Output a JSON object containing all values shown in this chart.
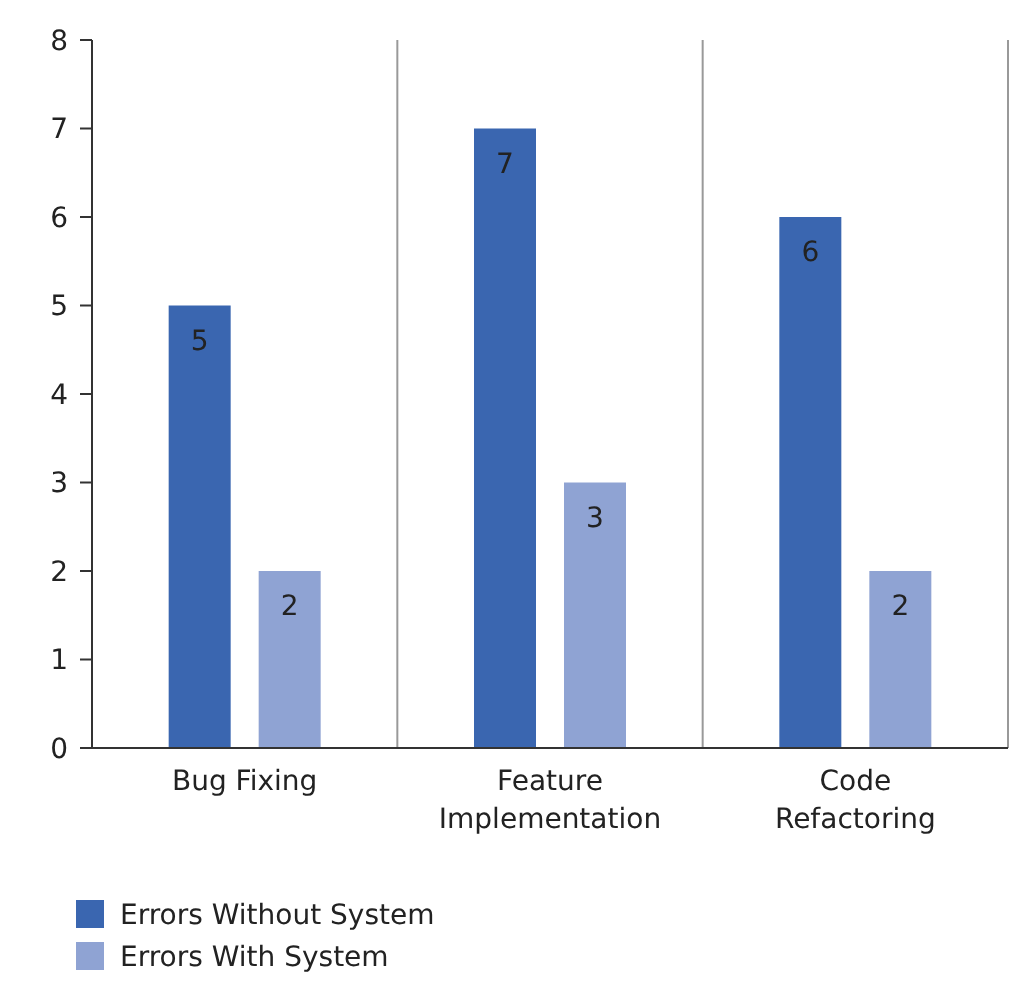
{
  "chart_data": {
    "type": "bar",
    "categories": [
      "Bug Fixing",
      "Feature Implementation",
      "Code Refactoring"
    ],
    "series": [
      {
        "name": "Errors Without System",
        "color": "#3a66b0",
        "values": [
          5,
          7,
          6
        ]
      },
      {
        "name": "Errors With System",
        "color": "#8fa3d3",
        "values": [
          2,
          3,
          2
        ]
      }
    ],
    "ylim": [
      0,
      8
    ],
    "yticks": [
      0,
      1,
      2,
      3,
      4,
      5,
      6,
      7,
      8
    ],
    "grid": "x",
    "legend": "bottom left",
    "data_labels": true
  }
}
